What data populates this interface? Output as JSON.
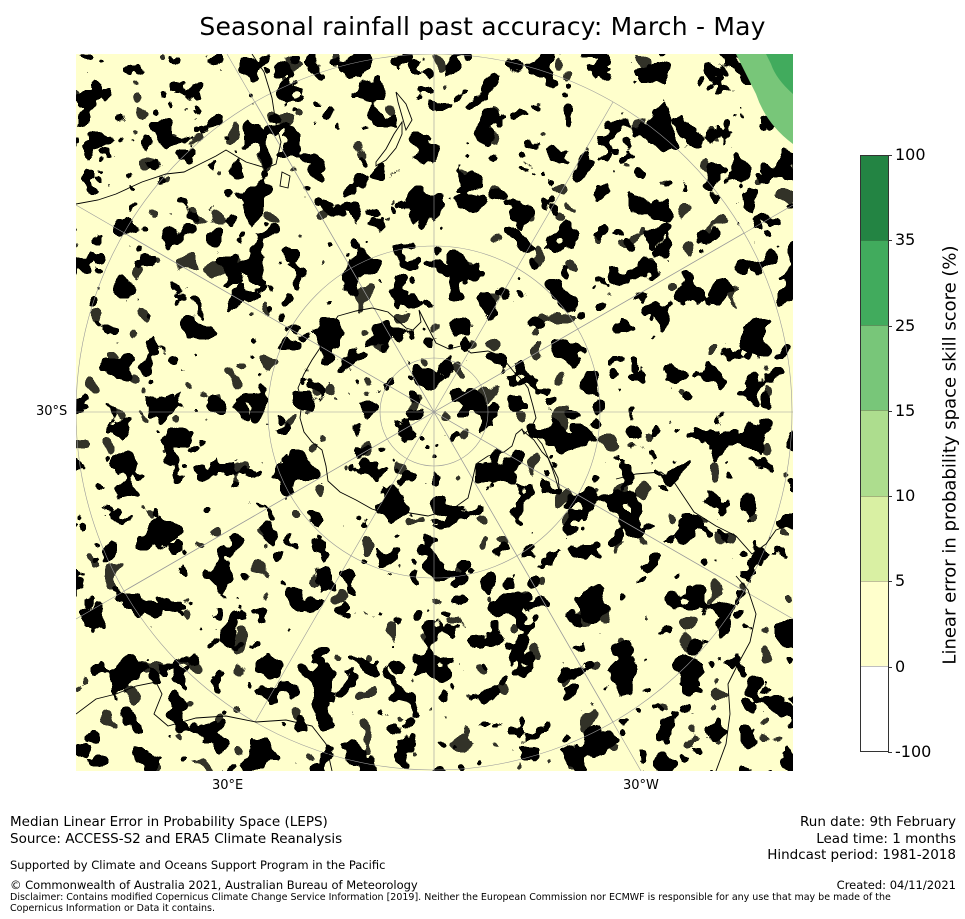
{
  "title": "Seasonal rainfall past accuracy: March - May",
  "map": {
    "labels": {
      "lat_left": "30°S",
      "lon_left": "30°E",
      "lon_right": "30°W"
    },
    "colors": {
      "ocean_base": "#ffffcc",
      "coast": "#000000",
      "grid": "#9a9a9a"
    }
  },
  "colorbar": {
    "label": "Linear error in probability space skill score (%)",
    "ticks": [
      "100",
      "35",
      "25",
      "15",
      "10",
      "5",
      "0",
      "-100"
    ],
    "bins": [
      {
        "range": "35 to 100",
        "color": "#238443"
      },
      {
        "range": "25 to 35",
        "color": "#41ab5d"
      },
      {
        "range": "15 to 25",
        "color": "#78c679"
      },
      {
        "range": "10 to 15",
        "color": "#addd8e"
      },
      {
        "range": "5 to 10",
        "color": "#d9f0a3"
      },
      {
        "range": "0 to 5",
        "color": "#ffffcc"
      },
      {
        "range": "-100 to 0",
        "color": "#ffffff"
      }
    ]
  },
  "footer": {
    "method": "Median Linear Error in Probability Space (LEPS)",
    "source": "Source: ACCESS-S2 and ERA5 Climate Reanalysis",
    "support": "Supported by Climate and Oceans Support Program in the Pacific",
    "copyright": "© Commonwealth of Australia 2021, Australian Bureau of Meteorology",
    "disclaimer": "Disclaimer: Contains modified Copernicus Climate Change Service Information [2019]. Neither the European Commission nor ECMWF is responsible for any use that may be made of the Copernicus Information or Data it contains.",
    "run_date": "Run date: 9th February",
    "lead_time": "Lead time: 1 months",
    "hindcast": "Hindcast period: 1981-2018",
    "created": "Created: 04/11/2021"
  }
}
